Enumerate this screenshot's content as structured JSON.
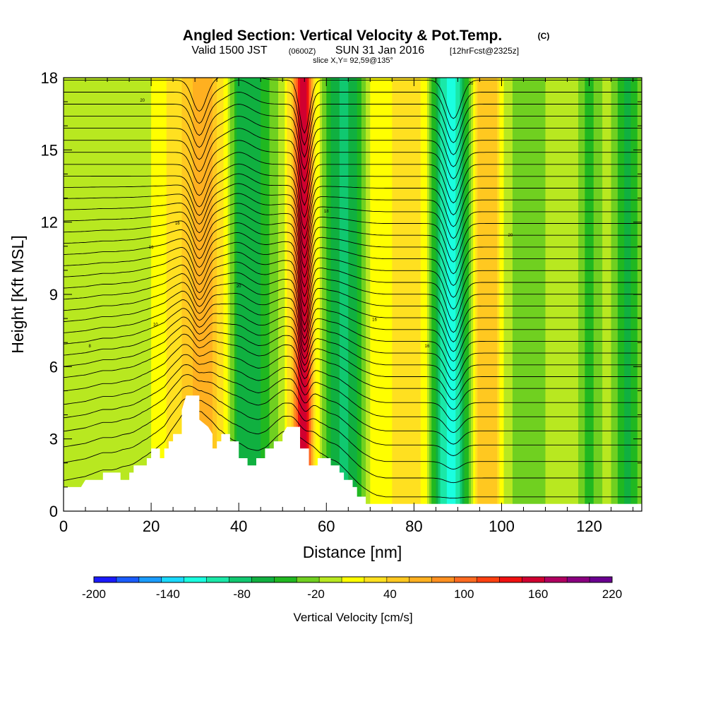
{
  "chart_data": {
    "type": "heatmap",
    "title": "Angled Section: Vertical Velocity & Pot.Temp.",
    "title_units": "(C)",
    "subtitle": {
      "valid_prefix": "Valid 1500 JST",
      "utc": "(0600Z)",
      "date": "SUN 31 Jan 2016",
      "forecast": "[12hrFcst@2325z]"
    },
    "slice_info": "slice X,Y= 92,59@135°",
    "xlabel": "Distance [nm]",
    "ylabel": "Height [Kft MSL]",
    "xlim": [
      0,
      132
    ],
    "ylim": [
      0,
      18
    ],
    "x_ticks": [
      0,
      20,
      40,
      60,
      80,
      100,
      120
    ],
    "y_ticks": [
      0,
      3,
      6,
      9,
      12,
      15,
      18
    ],
    "colorbar": {
      "title": "Vertical Velocity [cm/s]",
      "min": -200,
      "max": 220,
      "step": 20,
      "tick_labels": [
        -200,
        -140,
        -80,
        -20,
        40,
        100,
        160,
        220
      ],
      "colors": [
        "#1a1aff",
        "#1a5cff",
        "#1a9cff",
        "#1ad9ff",
        "#1affe0",
        "#1ae8a8",
        "#10c870",
        "#10b040",
        "#20b820",
        "#70d020",
        "#b8e820",
        "#ffff00",
        "#ffe020",
        "#ffc820",
        "#ffb020",
        "#ff9020",
        "#ff6a20",
        "#ff4010",
        "#f01010",
        "#d00030",
        "#b00060",
        "#8a0080",
        "#6a0090"
      ]
    },
    "velocity_bands": [
      {
        "x": 0,
        "v": 15
      },
      {
        "x": 8,
        "v": 0
      },
      {
        "x": 14,
        "v": 10
      },
      {
        "x": 20,
        "v": 20
      },
      {
        "x": 27,
        "v": 60
      },
      {
        "x": 31,
        "v": 90
      },
      {
        "x": 34,
        "v": 80
      },
      {
        "x": 37,
        "v": 30
      },
      {
        "x": 40,
        "v": -50
      },
      {
        "x": 43,
        "v": -60
      },
      {
        "x": 47,
        "v": -20
      },
      {
        "x": 50,
        "v": 10
      },
      {
        "x": 52,
        "v": 60
      },
      {
        "x": 54,
        "v": 180
      },
      {
        "x": 55.5,
        "v": 200
      },
      {
        "x": 57,
        "v": 60
      },
      {
        "x": 59,
        "v": 0
      },
      {
        "x": 61,
        "v": -40
      },
      {
        "x": 64,
        "v": -70
      },
      {
        "x": 67,
        "v": -40
      },
      {
        "x": 70,
        "v": 20
      },
      {
        "x": 75,
        "v": 40
      },
      {
        "x": 80,
        "v": 60
      },
      {
        "x": 83,
        "v": 20
      },
      {
        "x": 86,
        "v": -80
      },
      {
        "x": 89,
        "v": -120
      },
      {
        "x": 92,
        "v": -30
      },
      {
        "x": 95,
        "v": 70
      },
      {
        "x": 98,
        "v": 80
      },
      {
        "x": 101,
        "v": 10
      },
      {
        "x": 105,
        "v": -20
      },
      {
        "x": 110,
        "v": 0
      },
      {
        "x": 116,
        "v": 20
      },
      {
        "x": 120,
        "v": -30
      },
      {
        "x": 124,
        "v": 10
      },
      {
        "x": 129,
        "v": -50
      },
      {
        "x": 132,
        "v": -10
      }
    ],
    "terrain": [
      [
        0,
        1.0
      ],
      [
        4,
        1.0
      ],
      [
        5,
        1.3
      ],
      [
        9,
        1.3
      ],
      [
        9,
        1.6
      ],
      [
        13,
        1.6
      ],
      [
        13,
        1.3
      ],
      [
        15,
        1.3
      ],
      [
        15,
        1.6
      ],
      [
        16,
        1.6
      ],
      [
        16,
        1.9
      ],
      [
        19,
        1.9
      ],
      [
        19,
        2.2
      ],
      [
        20,
        2.2
      ],
      [
        20,
        2.6
      ],
      [
        22,
        2.6
      ],
      [
        22,
        2.2
      ],
      [
        23,
        2.2
      ],
      [
        23,
        2.6
      ],
      [
        24,
        2.6
      ],
      [
        24,
        2.9
      ],
      [
        25,
        2.9
      ],
      [
        25,
        3.2
      ],
      [
        27,
        3.2
      ],
      [
        27,
        4.2
      ],
      [
        28,
        4.8
      ],
      [
        31,
        4.8
      ],
      [
        31,
        3.8
      ],
      [
        33,
        3.5
      ],
      [
        34,
        3.2
      ],
      [
        34,
        2.6
      ],
      [
        35,
        2.6
      ],
      [
        35,
        2.9
      ],
      [
        36,
        2.9
      ],
      [
        36,
        3.2
      ],
      [
        38,
        3.2
      ],
      [
        38,
        2.9
      ],
      [
        40,
        2.9
      ],
      [
        40,
        2.2
      ],
      [
        42,
        2.2
      ],
      [
        42,
        1.9
      ],
      [
        44,
        1.9
      ],
      [
        44,
        2.2
      ],
      [
        46,
        2.2
      ],
      [
        46,
        2.6
      ],
      [
        48,
        2.6
      ],
      [
        48,
        2.9
      ],
      [
        50,
        2.9
      ],
      [
        50,
        3.2
      ],
      [
        51,
        3.5
      ],
      [
        54,
        3.5
      ],
      [
        54,
        2.6
      ],
      [
        56,
        2.6
      ],
      [
        56,
        1.9
      ],
      [
        58,
        1.9
      ],
      [
        58,
        2.2
      ],
      [
        61,
        2.2
      ],
      [
        61,
        1.9
      ],
      [
        63,
        1.9
      ],
      [
        63,
        1.6
      ],
      [
        64,
        1.6
      ],
      [
        64,
        1.3
      ],
      [
        66,
        1.3
      ],
      [
        66,
        1.0
      ],
      [
        67,
        1.0
      ],
      [
        67,
        0.6
      ],
      [
        69,
        0.6
      ],
      [
        69,
        0.3
      ],
      [
        132,
        0.3
      ]
    ],
    "isentrope_heights": [
      0.3,
      1.1,
      1.8,
      2.5,
      3.1,
      3.7,
      4.3,
      4.9,
      5.4,
      5.9,
      6.4,
      6.9,
      7.4,
      7.9,
      8.4,
      8.9,
      9.4,
      9.9,
      10.4,
      10.9,
      11.4,
      11.9,
      12.4,
      12.9,
      13.4,
      13.9,
      14.4,
      14.9,
      15.4,
      15.9,
      16.4,
      16.9,
      17.4,
      17.9
    ],
    "isentrope_labels": [
      {
        "text": "8",
        "x": 6,
        "y": 6.8
      },
      {
        "text": "10",
        "x": 21,
        "y": 7.7
      },
      {
        "text": "16",
        "x": 20,
        "y": 10.9
      },
      {
        "text": "16",
        "x": 26,
        "y": 11.9
      },
      {
        "text": "20",
        "x": 18,
        "y": 17.0
      },
      {
        "text": "20",
        "x": 40,
        "y": 9.3
      },
      {
        "text": "18",
        "x": 60,
        "y": 12.4
      },
      {
        "text": "16",
        "x": 71,
        "y": 7.9
      },
      {
        "text": "16",
        "x": 83,
        "y": 6.8
      },
      {
        "text": "20",
        "x": 93,
        "y": 17.7
      },
      {
        "text": "20",
        "x": 102,
        "y": 11.4
      }
    ]
  }
}
